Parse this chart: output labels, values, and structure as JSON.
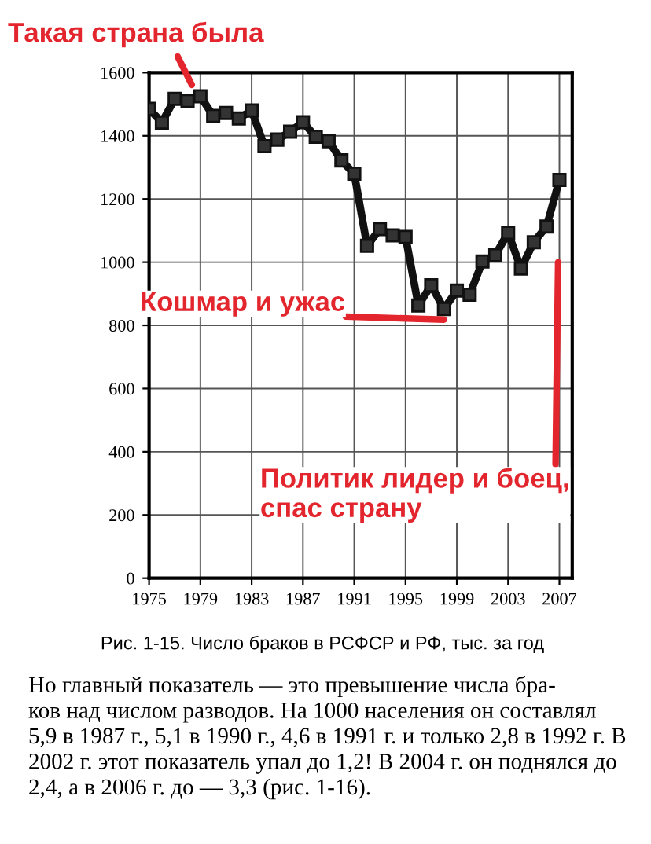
{
  "chart_data": {
    "type": "line",
    "color": "#111111",
    "marker": "square",
    "line_style": "solid",
    "grid": true,
    "x": [
      1975,
      1976,
      1977,
      1978,
      1979,
      1980,
      1981,
      1982,
      1983,
      1984,
      1985,
      1986,
      1987,
      1988,
      1989,
      1990,
      1991,
      1992,
      1993,
      1994,
      1995,
      1996,
      1997,
      1998,
      1999,
      2000,
      2001,
      2002,
      2003,
      2004,
      2005,
      2006,
      2007
    ],
    "values": [
      1485,
      1442,
      1517,
      1510,
      1525,
      1463,
      1472,
      1455,
      1480,
      1367,
      1388,
      1413,
      1443,
      1397,
      1383,
      1322,
      1280,
      1052,
      1105,
      1085,
      1080,
      863,
      927,
      852,
      910,
      897,
      1002,
      1022,
      1093,
      980,
      1063,
      1113,
      1260
    ],
    "xlim": [
      1975,
      2008
    ],
    "xticks": [
      1975,
      1979,
      1983,
      1987,
      1991,
      1995,
      1999,
      2003,
      2007
    ],
    "ylim": [
      0,
      1600
    ],
    "yticks": [
      0,
      200,
      400,
      600,
      800,
      1000,
      1200,
      1400,
      1600
    ],
    "annotations": [
      "Такая страна была",
      {
        "text": "Кошмар и ужас",
        "x": 1998,
        "y": 818
      },
      "Политик лидер и боец,\nспас страну",
      "Рис. 1-15. Число браков в РСФСР и РФ, тыс. за год",
      "Но главный показатель — это превышение числа бра-\nков над числом разводов. На 1000 населения он составлял\n5,9 в 1987 г., 5,1 в 1990 г., 4,6 в 1991 г. и только 2,8 в 1992 г. В\n2002 г. этот показатель упал до 1,2! В 2004 г. он поднялся до\n2,4, а в 2006 г. до — 3,3 (рис. 1-16)."
    ]
  }
}
